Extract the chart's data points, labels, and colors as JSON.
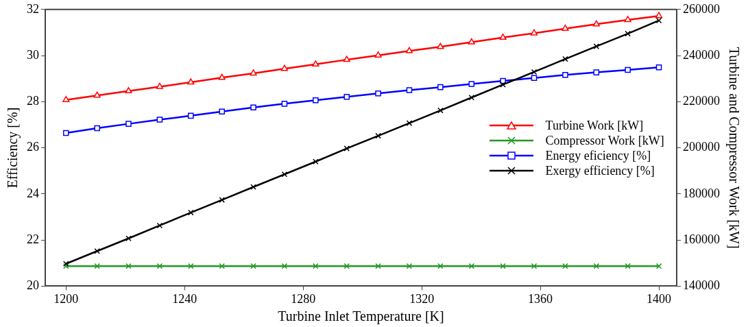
{
  "chart_data": {
    "type": "line",
    "xlabel": "Turbine Inlet Temperature [K]",
    "ylabel": "Efficiency [%]",
    "y2label": "Turbine and Compressor Work [kW]",
    "x": [
      1200,
      1210.5,
      1221.1,
      1231.6,
      1242.1,
      1252.6,
      1263.2,
      1273.7,
      1284.2,
      1294.7,
      1305.3,
      1315.8,
      1326.3,
      1336.8,
      1347.4,
      1357.9,
      1368.4,
      1378.9,
      1389.5,
      1400
    ],
    "xlim": [
      1193,
      1406
    ],
    "xticks": [
      1200,
      1240,
      1280,
      1320,
      1360,
      1400
    ],
    "ylim": [
      20,
      32
    ],
    "yticks": [
      20,
      22,
      24,
      26,
      28,
      30,
      32
    ],
    "y2lim": [
      140000,
      260000
    ],
    "y2ticks": [
      140000,
      160000,
      180000,
      200000,
      220000,
      240000,
      260000
    ],
    "grid": false,
    "legend": "right",
    "line_style": "solid",
    "series": [
      {
        "name": "Turbine Work [kW]",
        "color": "#ff0000",
        "axis": "y2",
        "marker": "triangle",
        "values": [
          220800,
          222700,
          224600,
          226500,
          228400,
          230400,
          232300,
          234300,
          236200,
          238200,
          240100,
          242000,
          243800,
          245800,
          247800,
          249700,
          251700,
          253600,
          255500,
          257200
        ]
      },
      {
        "name": "Compressor Work [kW]",
        "color": "#229922",
        "axis": "y2",
        "marker": "cross",
        "values": [
          148700,
          148700,
          148700,
          148700,
          148700,
          148700,
          148700,
          148700,
          148700,
          148700,
          148700,
          148700,
          148700,
          148700,
          148700,
          148700,
          148700,
          148700,
          148700,
          148700
        ]
      },
      {
        "name": "Energy eficiency [%]",
        "color": "#0000ff",
        "axis": "y",
        "marker": "square",
        "values": [
          26.64,
          26.85,
          27.04,
          27.22,
          27.39,
          27.57,
          27.75,
          27.91,
          28.06,
          28.21,
          28.36,
          28.5,
          28.63,
          28.77,
          28.9,
          29.03,
          29.16,
          29.27,
          29.38,
          29.49
        ]
      },
      {
        "name": "Exergy efficiency [%]",
        "color": "#000000",
        "axis": "y",
        "marker": "cross",
        "values": [
          20.97,
          21.52,
          22.07,
          22.63,
          23.19,
          23.74,
          24.3,
          24.85,
          25.4,
          25.97,
          26.52,
          27.07,
          27.62,
          28.18,
          28.74,
          29.29,
          29.85,
          30.4,
          30.95,
          31.52
        ]
      }
    ]
  }
}
